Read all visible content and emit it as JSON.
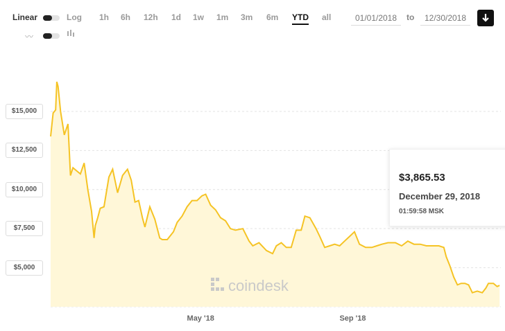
{
  "controls": {
    "scale_linear": "Linear",
    "scale_log": "Log",
    "ranges": [
      "1h",
      "6h",
      "12h",
      "1d",
      "1w",
      "1m",
      "3m",
      "6m",
      "YTD",
      "all"
    ],
    "active_range": "YTD",
    "date_from": "01/01/2018",
    "date_to": "12/30/2018",
    "to_label": "to"
  },
  "tooltip": {
    "price": "$3,865.53",
    "date": "December 29, 2018",
    "time": "01:59:58 MSK"
  },
  "watermark": "coindesk",
  "colors": {
    "line": "#f5c324",
    "fill": "#fff7d8",
    "grid": "#e2e2e2"
  },
  "chart_data": {
    "type": "area",
    "series": [
      {
        "x": [
          "2018-01-01",
          "2018-01-03",
          "2018-01-05",
          "2018-01-06",
          "2018-01-07",
          "2018-01-09",
          "2018-01-12",
          "2018-01-15",
          "2018-01-17",
          "2018-01-19",
          "2018-01-22",
          "2018-01-25",
          "2018-01-28",
          "2018-01-31",
          "2018-02-03",
          "2018-02-05",
          "2018-02-06",
          "2018-02-08",
          "2018-02-10",
          "2018-02-13",
          "2018-02-17",
          "2018-02-20",
          "2018-02-24",
          "2018-02-28",
          "2018-03-04",
          "2018-03-07",
          "2018-03-10",
          "2018-03-13",
          "2018-03-16",
          "2018-03-18",
          "2018-03-22",
          "2018-03-26",
          "2018-03-30",
          "2018-04-01",
          "2018-04-05",
          "2018-04-10",
          "2018-04-13",
          "2018-04-17",
          "2018-04-21",
          "2018-04-25",
          "2018-04-29",
          "2018-05-03",
          "2018-05-06",
          "2018-05-10",
          "2018-05-14",
          "2018-05-18",
          "2018-05-22",
          "2018-05-26",
          "2018-05-30",
          "2018-06-05",
          "2018-06-10",
          "2018-06-13",
          "2018-06-18",
          "2018-06-24",
          "2018-06-29",
          "2018-07-02",
          "2018-07-06",
          "2018-07-10",
          "2018-07-14",
          "2018-07-18",
          "2018-07-22",
          "2018-07-25",
          "2018-07-29",
          "2018-08-03",
          "2018-08-06",
          "2018-08-10",
          "2018-08-14",
          "2018-08-18",
          "2018-08-22",
          "2018-08-26",
          "2018-08-30",
          "2018-09-03",
          "2018-09-07",
          "2018-09-12",
          "2018-09-17",
          "2018-09-21",
          "2018-09-25",
          "2018-09-30",
          "2018-10-06",
          "2018-10-11",
          "2018-10-16",
          "2018-10-21",
          "2018-10-26",
          "2018-10-31",
          "2018-11-05",
          "2018-11-10",
          "2018-11-14",
          "2018-11-16",
          "2018-11-19",
          "2018-11-22",
          "2018-11-25",
          "2018-11-28",
          "2018-12-01",
          "2018-12-04",
          "2018-12-07",
          "2018-12-11",
          "2018-12-15",
          "2018-12-18",
          "2018-12-20",
          "2018-12-24",
          "2018-12-27",
          "2018-12-29"
        ],
        "y": [
          13400,
          14900,
          15100,
          16900,
          16600,
          15000,
          13500,
          14200,
          10900,
          11400,
          11200,
          11000,
          11700,
          10000,
          8600,
          6900,
          7700,
          8200,
          8800,
          8900,
          10800,
          11300,
          9800,
          10900,
          11300,
          10600,
          9200,
          9300,
          8200,
          7600,
          8900,
          8100,
          6900,
          6800,
          6800,
          7300,
          7900,
          8300,
          8900,
          9300,
          9300,
          9600,
          9700,
          9000,
          8700,
          8200,
          8000,
          7500,
          7400,
          7500,
          6700,
          6400,
          6600,
          6100,
          5900,
          6400,
          6600,
          6300,
          6300,
          7400,
          7400,
          8300,
          8200,
          7500,
          7000,
          6300,
          6400,
          6500,
          6400,
          6700,
          7000,
          7300,
          6500,
          6300,
          6300,
          6400,
          6500,
          6600,
          6600,
          6400,
          6700,
          6500,
          6500,
          6400,
          6400,
          6400,
          6300,
          5700,
          5100,
          4400,
          3900,
          4000,
          4000,
          3900,
          3400,
          3500,
          3400,
          3700,
          4000,
          4000,
          3800,
          3865
        ]
      }
    ],
    "x_ticks": [
      "May '18",
      "Sep '18"
    ],
    "y_ticks": [
      "$5,000",
      "$7,500",
      "$10,000",
      "$12,500",
      "$15,000"
    ],
    "y_tick_values": [
      5000,
      7500,
      10000,
      12500,
      15000
    ],
    "ylim": [
      2500,
      17700
    ],
    "grid": true,
    "legend": "none"
  }
}
